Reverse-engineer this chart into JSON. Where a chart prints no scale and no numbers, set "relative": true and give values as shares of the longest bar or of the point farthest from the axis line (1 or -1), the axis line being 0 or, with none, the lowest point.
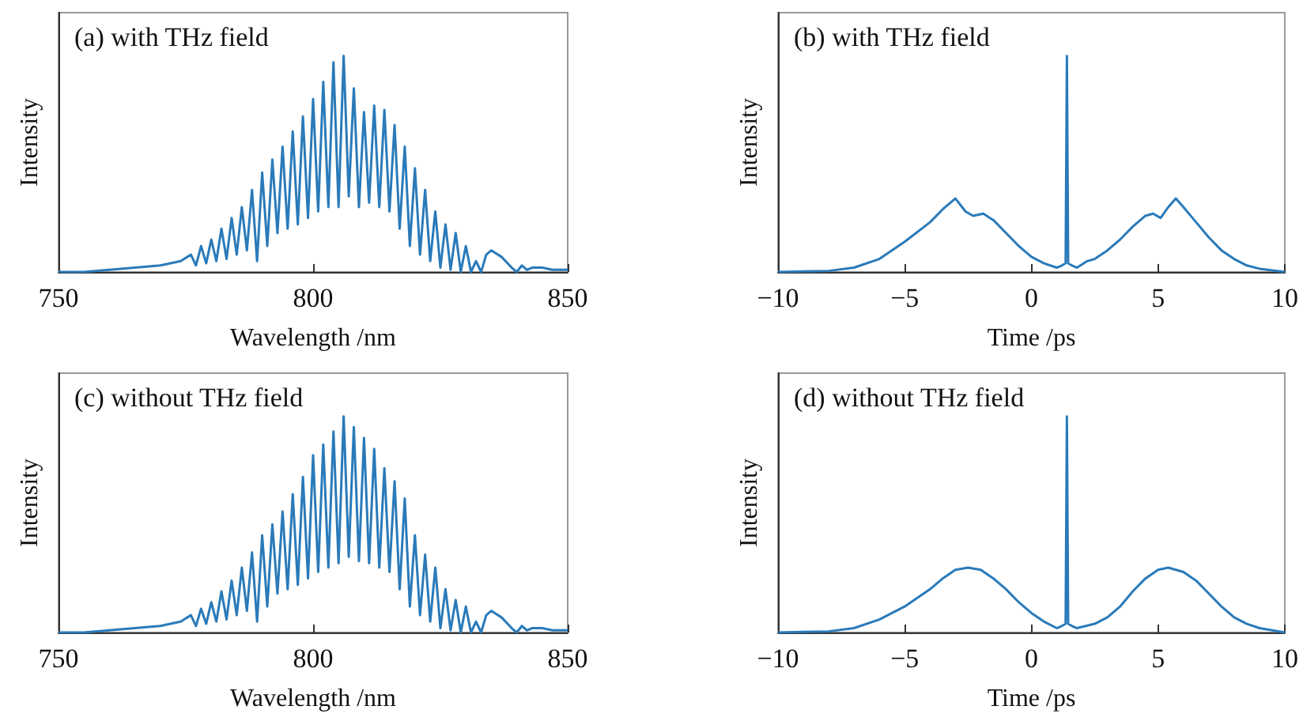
{
  "chart_data": [
    {
      "type": "line",
      "title": "(a) with THz field",
      "xlabel": "Wavelength /nm",
      "ylabel": "Intensity",
      "relative": true,
      "xlim": [
        750,
        850
      ],
      "xticks": [
        750,
        800,
        850
      ],
      "grid": false,
      "marker": "none",
      "line_style": "solid",
      "series": [
        {
          "color": "#2a7ab9",
          "x": [
            750,
            755,
            760,
            765,
            770,
            774,
            776,
            777,
            778,
            779,
            780,
            781,
            782,
            783,
            784,
            785,
            786,
            787,
            788,
            789,
            790,
            791,
            792,
            793,
            794,
            795,
            796,
            797,
            798,
            799,
            800,
            801,
            802,
            803,
            804,
            805,
            806,
            807,
            808,
            809,
            810,
            811,
            812,
            813,
            814,
            815,
            816,
            817,
            818,
            819,
            820,
            821,
            822,
            823,
            824,
            825,
            826,
            827,
            828,
            829,
            830,
            831,
            832,
            833,
            834,
            835,
            837,
            839,
            840,
            841,
            842,
            843,
            845,
            847,
            850
          ],
          "values": [
            0,
            0,
            0.01,
            0.02,
            0.03,
            0.05,
            0.08,
            0.03,
            0.12,
            0.04,
            0.15,
            0.05,
            0.2,
            0.06,
            0.25,
            0.08,
            0.3,
            0.1,
            0.38,
            0.05,
            0.46,
            0.12,
            0.52,
            0.18,
            0.58,
            0.2,
            0.65,
            0.22,
            0.72,
            0.25,
            0.8,
            0.28,
            0.88,
            0.3,
            0.97,
            0.3,
            1.0,
            0.35,
            0.85,
            0.3,
            0.74,
            0.32,
            0.77,
            0.3,
            0.75,
            0.28,
            0.68,
            0.2,
            0.58,
            0.12,
            0.48,
            0.08,
            0.38,
            0.05,
            0.28,
            0.02,
            0.22,
            0.01,
            0.18,
            0,
            0.12,
            0,
            0.05,
            0,
            0.08,
            0.1,
            0.07,
            0.02,
            0,
            0.03,
            0.01,
            0.02,
            0.02,
            0.01,
            0.01
          ]
        }
      ]
    },
    {
      "type": "line",
      "title": "(b) with THz field",
      "xlabel": "Time /ps",
      "ylabel": "Intensity",
      "relative": true,
      "xlim": [
        -10,
        10
      ],
      "xticks": [
        -10,
        -5,
        0,
        5,
        10
      ],
      "grid": false,
      "marker": "none",
      "line_style": "solid",
      "series": [
        {
          "color": "#2a7ab9",
          "x": [
            -10,
            -8,
            -7,
            -6,
            -5,
            -4,
            -3.5,
            -3,
            -2.6,
            -2.3,
            -1.9,
            -1.5,
            -1,
            -0.5,
            0,
            0.5,
            1,
            1.2,
            1.35,
            1.4,
            1.45,
            1.6,
            1.8,
            2.2,
            2.5,
            3,
            3.5,
            4,
            4.5,
            4.8,
            5.1,
            5.4,
            5.7,
            6,
            6.5,
            7,
            7.5,
            8,
            8.5,
            9,
            10
          ],
          "values": [
            0,
            0.005,
            0.02,
            0.06,
            0.14,
            0.23,
            0.29,
            0.34,
            0.28,
            0.26,
            0.27,
            0.24,
            0.18,
            0.12,
            0.07,
            0.04,
            0.02,
            0.03,
            0.04,
            1.0,
            0.04,
            0.03,
            0.02,
            0.05,
            0.06,
            0.1,
            0.15,
            0.21,
            0.26,
            0.27,
            0.25,
            0.3,
            0.34,
            0.3,
            0.23,
            0.16,
            0.1,
            0.06,
            0.03,
            0.015,
            0
          ]
        }
      ]
    },
    {
      "type": "line",
      "title": "(c) without THz field",
      "xlabel": "Wavelength /nm",
      "ylabel": "Intensity",
      "relative": true,
      "xlim": [
        750,
        850
      ],
      "xticks": [
        750,
        800,
        850
      ],
      "grid": false,
      "marker": "none",
      "line_style": "solid",
      "series": [
        {
          "color": "#2a7ab9",
          "x": [
            750,
            755,
            760,
            765,
            770,
            774,
            776,
            777,
            778,
            779,
            780,
            781,
            782,
            783,
            784,
            785,
            786,
            787,
            788,
            789,
            790,
            791,
            792,
            793,
            794,
            795,
            796,
            797,
            798,
            799,
            800,
            801,
            802,
            803,
            804,
            805,
            806,
            807,
            808,
            809,
            810,
            811,
            812,
            813,
            814,
            815,
            816,
            817,
            818,
            819,
            820,
            821,
            822,
            823,
            824,
            825,
            826,
            827,
            828,
            829,
            830,
            831,
            832,
            833,
            834,
            835,
            837,
            839,
            840,
            841,
            842,
            843,
            845,
            847,
            850
          ],
          "values": [
            0,
            0,
            0.01,
            0.02,
            0.03,
            0.05,
            0.08,
            0.03,
            0.11,
            0.04,
            0.14,
            0.05,
            0.19,
            0.06,
            0.24,
            0.08,
            0.3,
            0.1,
            0.37,
            0.05,
            0.45,
            0.12,
            0.5,
            0.18,
            0.56,
            0.2,
            0.64,
            0.22,
            0.72,
            0.25,
            0.82,
            0.28,
            0.87,
            0.3,
            0.93,
            0.32,
            1.0,
            0.35,
            0.95,
            0.33,
            0.9,
            0.32,
            0.85,
            0.3,
            0.76,
            0.28,
            0.7,
            0.2,
            0.62,
            0.12,
            0.45,
            0.08,
            0.36,
            0.05,
            0.3,
            0.02,
            0.2,
            0.01,
            0.15,
            0,
            0.12,
            0,
            0.05,
            0,
            0.08,
            0.1,
            0.07,
            0.02,
            0,
            0.03,
            0.01,
            0.02,
            0.02,
            0.01,
            0.01
          ]
        }
      ]
    },
    {
      "type": "line",
      "title": "(d) without THz field",
      "xlabel": "Time /ps",
      "ylabel": "Intensity",
      "relative": true,
      "xlim": [
        -10,
        10
      ],
      "xticks": [
        -10,
        -5,
        0,
        5,
        10
      ],
      "grid": false,
      "marker": "none",
      "line_style": "solid",
      "series": [
        {
          "color": "#2a7ab9",
          "x": [
            -10,
            -8,
            -7,
            -6,
            -5,
            -4,
            -3.5,
            -3,
            -2.5,
            -2,
            -1.5,
            -1,
            -0.5,
            0,
            0.5,
            1,
            1.2,
            1.35,
            1.4,
            1.45,
            1.6,
            1.8,
            2.5,
            3,
            3.5,
            4,
            4.5,
            5,
            5.4,
            6,
            6.5,
            7,
            7.5,
            8,
            8.5,
            9,
            10
          ],
          "values": [
            0,
            0.005,
            0.02,
            0.06,
            0.12,
            0.2,
            0.25,
            0.29,
            0.3,
            0.29,
            0.25,
            0.2,
            0.14,
            0.09,
            0.05,
            0.02,
            0.03,
            0.04,
            1.0,
            0.04,
            0.03,
            0.02,
            0.04,
            0.07,
            0.12,
            0.19,
            0.25,
            0.29,
            0.3,
            0.28,
            0.24,
            0.18,
            0.12,
            0.07,
            0.04,
            0.02,
            0
          ]
        }
      ]
    }
  ]
}
